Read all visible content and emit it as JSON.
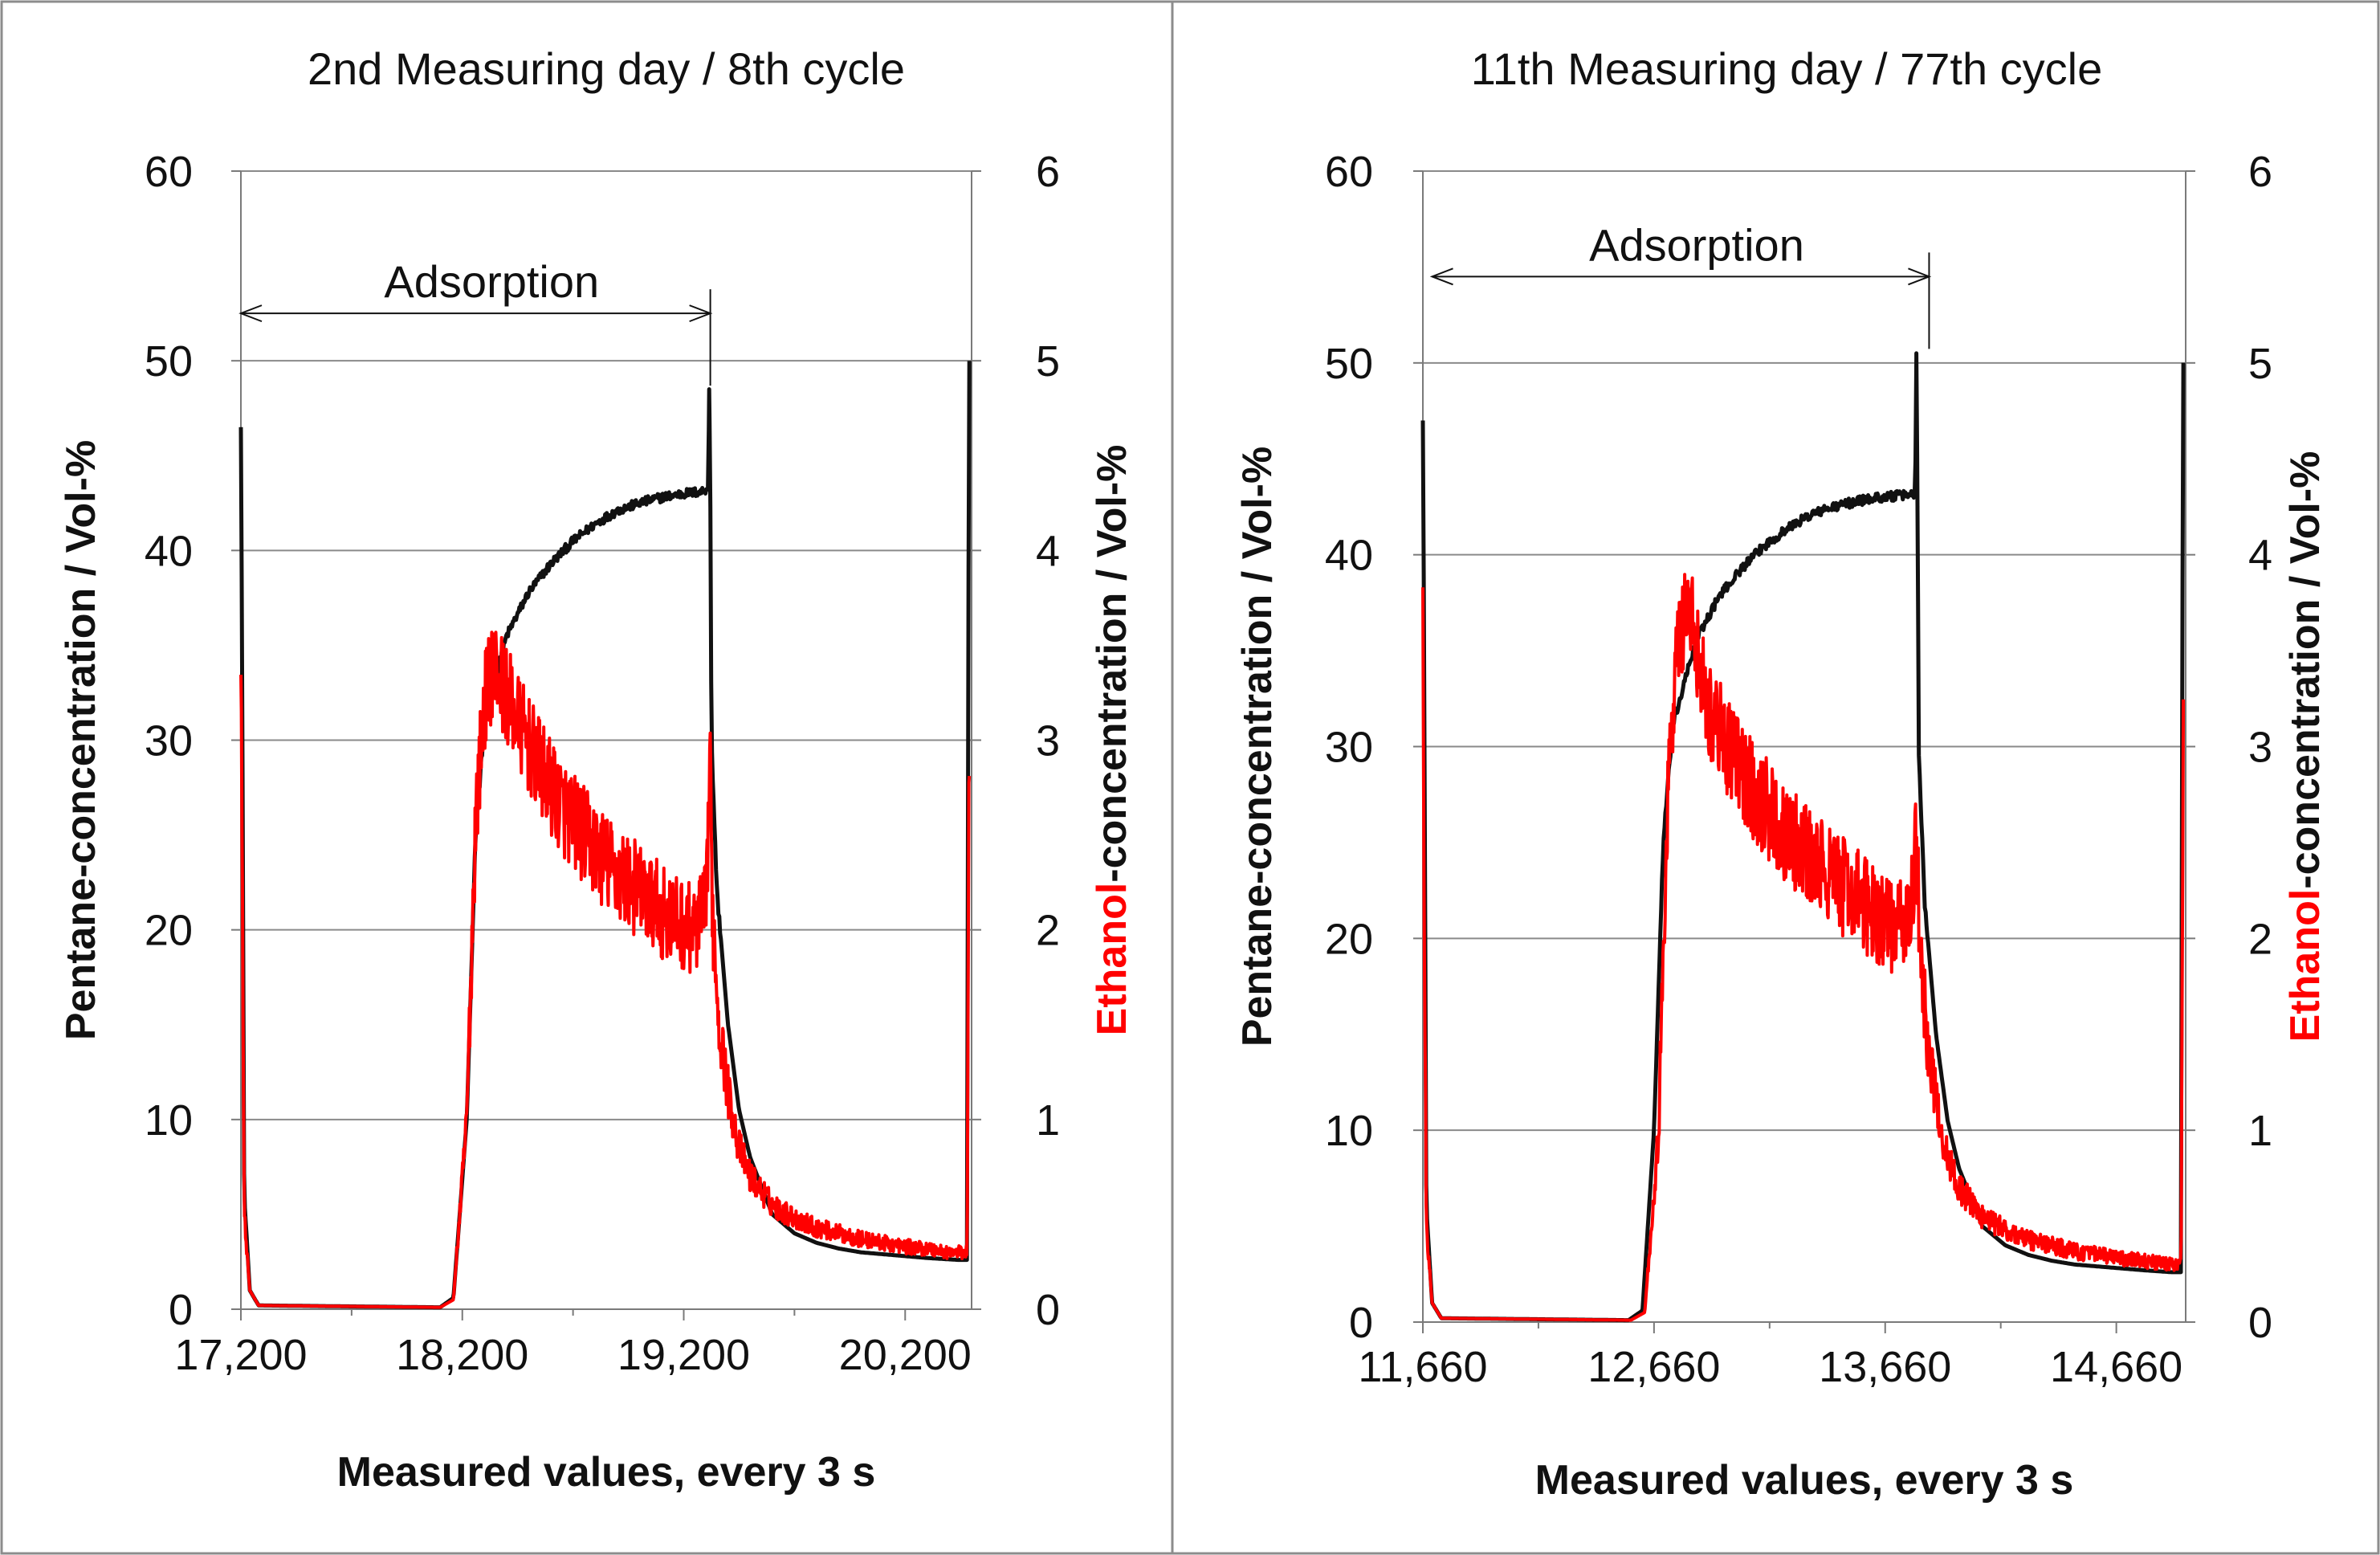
{
  "chart_data": [
    {
      "type": "line",
      "title": "2nd Measuring day / 8th cycle",
      "xlabel": "Measured  values, every 3 s",
      "ylabel_left": "Pentane-concentration  /  Vol-%",
      "ylabel_right_parts": [
        "Ethanol",
        "-concentration  /  Vol-%"
      ],
      "xlim": [
        17200,
        20500
      ],
      "ylim_left": [
        0,
        60
      ],
      "ylim_right": [
        0,
        6
      ],
      "xticks": [
        "17,200",
        "18,200",
        "19,200",
        "20,200"
      ],
      "xtick_values": [
        17200,
        18200,
        19200,
        20200
      ],
      "yticks_left": [
        "0",
        "10",
        "20",
        "30",
        "40",
        "50",
        "60"
      ],
      "yticks_right": [
        "0",
        "1",
        "2",
        "3",
        "4",
        "5",
        "6"
      ],
      "grid": true,
      "annotation": {
        "text": "Adsorption",
        "x_start": 17200,
        "x_end": 19320,
        "y": 52.5
      },
      "series": [
        {
          "name": "Pentane",
          "axis": "left",
          "color": "#111111",
          "x": [
            17200,
            17205,
            17215,
            17240,
            17280,
            18100,
            18160,
            18220,
            18260,
            18300,
            18400,
            18500,
            18600,
            18700,
            18800,
            18900,
            19000,
            19100,
            19200,
            19280,
            19310,
            19315,
            19320,
            19325,
            19350,
            19400,
            19450,
            19500,
            19600,
            19700,
            19800,
            19900,
            20000,
            20100,
            20200,
            20300,
            20440,
            20480,
            20485,
            20490
          ],
          "y": [
            46.5,
            36,
            6,
            1,
            0.2,
            0.1,
            0.6,
            10,
            25,
            31,
            35.5,
            37.8,
            39.3,
            40.5,
            41.4,
            42.1,
            42.5,
            42.8,
            43,
            43.1,
            43.3,
            48.5,
            43,
            30,
            22,
            15,
            10.5,
            8,
            5,
            4,
            3.5,
            3.2,
            3,
            2.9,
            2.8,
            2.7,
            2.6,
            2.6,
            35,
            50
          ]
        },
        {
          "name": "Ethanol",
          "axis": "right",
          "color": "#ff0000",
          "x": [
            17200,
            17205,
            17215,
            17240,
            17280,
            18100,
            18160,
            18220,
            18260,
            18300,
            18340,
            18380,
            18450,
            18550,
            18650,
            18750,
            18850,
            18950,
            19050,
            19150,
            19250,
            19300,
            19318,
            19330,
            19360,
            19400,
            19450,
            19500,
            19600,
            19700,
            19800,
            19900,
            20000,
            20100,
            20200,
            20300,
            20400,
            20480,
            20485,
            20490
          ],
          "y": [
            3.5,
            2.5,
            0.5,
            0.1,
            0.02,
            0.01,
            0.05,
            1.0,
            2.6,
            3.2,
            3.4,
            3.3,
            3.1,
            2.85,
            2.65,
            2.5,
            2.35,
            2.25,
            2.15,
            2.05,
            2.0,
            2.1,
            2.9,
            2.1,
            1.5,
            1.15,
            0.85,
            0.7,
            0.55,
            0.48,
            0.43,
            0.4,
            0.37,
            0.35,
            0.33,
            0.32,
            0.3,
            0.3,
            2.0,
            3.0
          ],
          "noise_amplitude": 0.26
        }
      ]
    },
    {
      "type": "line",
      "title": "11th Measuring day / 77th cycle",
      "xlabel": "Measured  values, every 3 s",
      "ylabel_left": "Pentane-concentration  /  Vol-%",
      "ylabel_right_parts": [
        "Ethanol",
        "-concentration  /  Vol-%"
      ],
      "xlim": [
        11660,
        14960
      ],
      "ylim_left": [
        0,
        60
      ],
      "ylim_right": [
        0,
        6
      ],
      "xticks": [
        "11,660",
        "12,660",
        "13,660",
        "14,660"
      ],
      "xtick_values": [
        11660,
        12660,
        13660,
        14660
      ],
      "yticks_left": [
        "0",
        "10",
        "20",
        "30",
        "40",
        "50",
        "60"
      ],
      "yticks_right": [
        "0",
        "1",
        "2",
        "3",
        "4",
        "5",
        "6"
      ],
      "grid": true,
      "annotation": {
        "text": "Adsorption",
        "x_start": 11700,
        "x_end": 13850,
        "y": 54.5
      },
      "series": [
        {
          "name": "Pentane",
          "axis": "left",
          "color": "#111111",
          "x": [
            11660,
            11665,
            11675,
            11700,
            11740,
            12550,
            12610,
            12660,
            12700,
            12740,
            12840,
            12940,
            13040,
            13140,
            13240,
            13340,
            13440,
            13540,
            13640,
            13740,
            13790,
            13795,
            13800,
            13805,
            13830,
            13880,
            13930,
            13980,
            14080,
            14180,
            14280,
            14380,
            14480,
            14580,
            14680,
            14780,
            14900,
            14940,
            14945,
            14950
          ],
          "y": [
            47,
            36,
            6,
            1,
            0.2,
            0.1,
            0.6,
            10,
            25,
            31,
            35.5,
            37.8,
            39.3,
            40.5,
            41.4,
            42.1,
            42.5,
            42.8,
            43,
            43.1,
            43.2,
            50.5,
            43,
            30,
            22,
            15,
            10.5,
            8,
            5,
            4,
            3.5,
            3.2,
            3,
            2.9,
            2.8,
            2.7,
            2.6,
            2.6,
            35,
            50
          ]
        },
        {
          "name": "Ethanol",
          "axis": "right",
          "color": "#ff0000",
          "x": [
            11660,
            11665,
            11675,
            11700,
            11740,
            12560,
            12620,
            12680,
            12720,
            12760,
            12800,
            12840,
            12900,
            13000,
            13100,
            13200,
            13300,
            13400,
            13500,
            13600,
            13700,
            13770,
            13795,
            13810,
            13840,
            13880,
            13930,
            13980,
            14080,
            14180,
            14280,
            14380,
            14480,
            14580,
            14680,
            14780,
            14880,
            14940,
            14945,
            14950
          ],
          "y": [
            3.7,
            2.5,
            0.5,
            0.1,
            0.02,
            0.01,
            0.05,
            1.0,
            2.8,
            3.5,
            3.75,
            3.55,
            3.2,
            2.95,
            2.75,
            2.6,
            2.45,
            2.35,
            2.25,
            2.15,
            2.05,
            2.1,
            2.5,
            2.0,
            1.5,
            1.15,
            0.85,
            0.7,
            0.55,
            0.48,
            0.43,
            0.4,
            0.37,
            0.35,
            0.33,
            0.32,
            0.3,
            0.3,
            2.0,
            3.2
          ],
          "noise_amplitude": 0.26
        }
      ]
    }
  ]
}
